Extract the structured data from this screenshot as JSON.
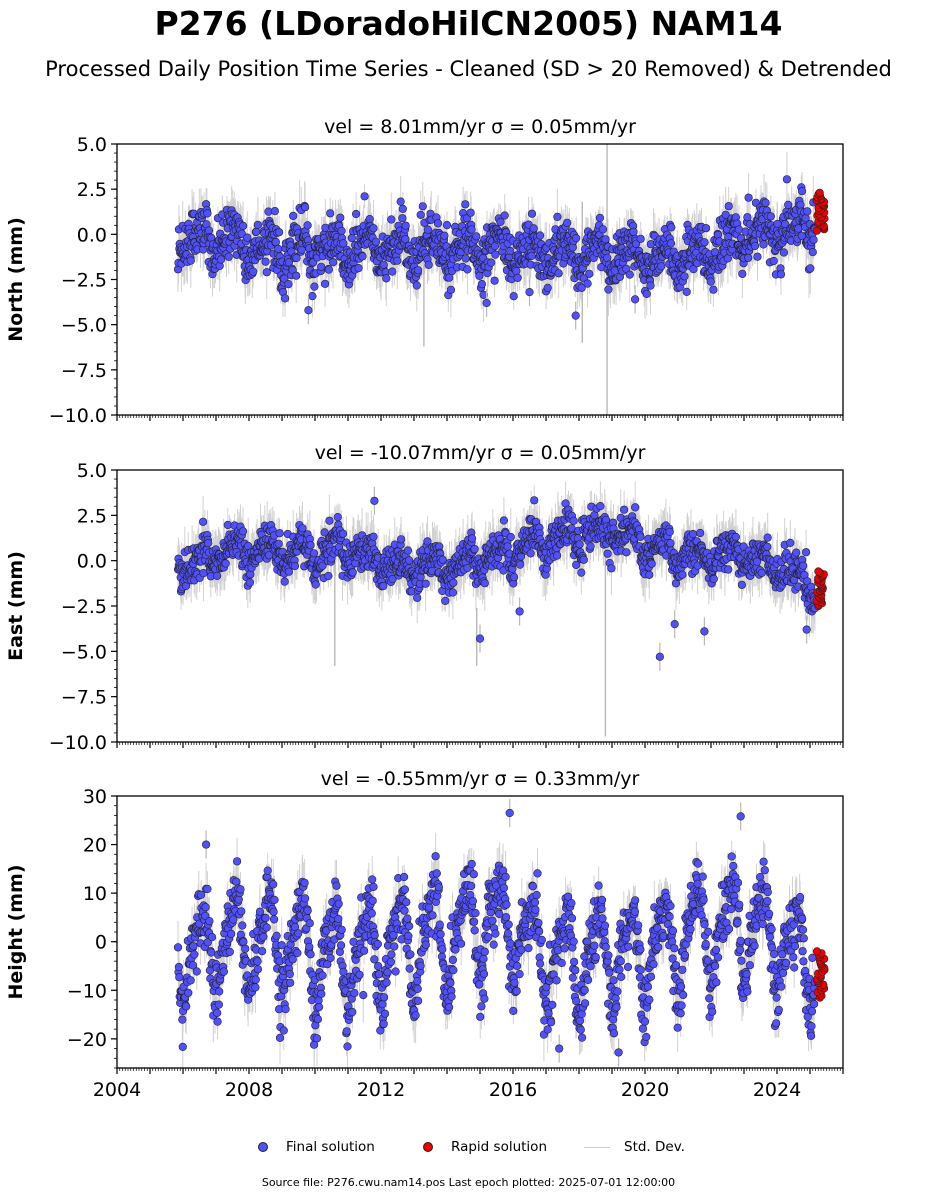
{
  "title": "P276 (LDoradoHilCN2005) NAM14",
  "subtitle": "Processed Daily Position Time Series - Cleaned (SD > 20 Removed) & Detrended",
  "footer": "Source file: P276.cwu.nam14.pos  Last epoch plotted: 2025-07-01 12:00:00",
  "legend": {
    "final": "Final solution",
    "rapid": "Rapid solution",
    "stddev": "Std. Dev.",
    "placement": "bottom-center"
  },
  "colors": {
    "final": "#5050ff",
    "rapid": "#ee0000",
    "stddev": "#b8b8b8",
    "marker_edge": "#222222"
  },
  "chart_data": [
    {
      "type": "scatter",
      "panel": "north",
      "title": "vel = 8.01mm/yr   σ = 0.05mm/yr",
      "ylabel": "North (mm)",
      "xlim": [
        2004.0,
        2026.0
      ],
      "ylim": [
        -10.0,
        5.0
      ],
      "yticks": [
        5.0,
        2.5,
        0.0,
        -2.5,
        -5.0,
        -7.5,
        -10.0
      ],
      "ytick_labels": [
        "5.0",
        "2.5",
        "0.0",
        "−2.5",
        "−5.0",
        "−7.5",
        "−10.0"
      ],
      "start": 2005.85,
      "end_final": 2025.15,
      "end_rapid": 2025.5,
      "anchors": [
        [
          2005.9,
          0.2
        ],
        [
          2007,
          -0.3
        ],
        [
          2008,
          -0.6
        ],
        [
          2009,
          -1.0
        ],
        [
          2010,
          -0.7
        ],
        [
          2012,
          -0.8
        ],
        [
          2014,
          -0.7
        ],
        [
          2016,
          -0.9
        ],
        [
          2018,
          -1.0
        ],
        [
          2019,
          -1.0
        ],
        [
          2020,
          -1.2
        ],
        [
          2021,
          -1.4
        ],
        [
          2022,
          -1.0
        ],
        [
          2023,
          -0.3
        ],
        [
          2024,
          0.1
        ],
        [
          2025.2,
          0.6
        ],
        [
          2025.5,
          1.2
        ]
      ],
      "seasonal_amplitude": 0.7,
      "scatter_sd": 0.7,
      "errorbar_halfwidth": 1.1,
      "outliers": [
        [
          2015.2,
          -3.8
        ],
        [
          2016.5,
          -3.2
        ],
        [
          2017.9,
          -4.5
        ],
        [
          2019.7,
          -3.6
        ],
        [
          2009.8,
          -4.2
        ]
      ],
      "grey_spikes": [
        [
          2018.85,
          -10.0,
          5.0
        ],
        [
          2018.1,
          -6.0,
          1.8
        ],
        [
          2013.3,
          -6.2,
          1.0
        ]
      ],
      "rapid_range": [
        0.2,
        2.3
      ]
    },
    {
      "type": "scatter",
      "panel": "east",
      "title": "vel = -10.07mm/yr   σ = 0.05mm/yr",
      "ylabel": "East (mm)",
      "xlim": [
        2004.0,
        2026.0
      ],
      "ylim": [
        -10.0,
        5.0
      ],
      "yticks": [
        5.0,
        2.5,
        0.0,
        -2.5,
        -5.0,
        -7.5,
        -10.0
      ],
      "ytick_labels": [
        "5.0",
        "2.5",
        "0.0",
        "−2.5",
        "−5.0",
        "−7.5",
        "−10.0"
      ],
      "start": 2005.85,
      "end_final": 2025.15,
      "end_rapid": 2025.5,
      "anchors": [
        [
          2005.9,
          -0.3
        ],
        [
          2007,
          0.3
        ],
        [
          2008,
          0.5
        ],
        [
          2010,
          0.4
        ],
        [
          2011,
          0.6
        ],
        [
          2012,
          0.0
        ],
        [
          2013,
          -0.5
        ],
        [
          2014,
          -0.4
        ],
        [
          2015,
          0.0
        ],
        [
          2016,
          0.6
        ],
        [
          2017,
          1.2
        ],
        [
          2018,
          1.3
        ],
        [
          2019,
          1.6
        ],
        [
          2020,
          1.0
        ],
        [
          2021,
          0.3
        ],
        [
          2022,
          0.2
        ],
        [
          2023,
          0.3
        ],
        [
          2024,
          -0.2
        ],
        [
          2025.2,
          -1.5
        ],
        [
          2025.5,
          -1.9
        ]
      ],
      "seasonal_amplitude": 0.6,
      "scatter_sd": 0.55,
      "errorbar_halfwidth": 1.1,
      "outliers": [
        [
          2011.8,
          3.3
        ],
        [
          2015.0,
          -4.3
        ],
        [
          2020.45,
          -5.3
        ],
        [
          2020.9,
          -3.5
        ],
        [
          2021.8,
          -3.9
        ],
        [
          2024.9,
          -3.8
        ],
        [
          2016.2,
          -2.8
        ]
      ],
      "grey_spikes": [
        [
          2018.8,
          -9.7,
          3.0
        ],
        [
          2010.6,
          -5.8,
          1.0
        ],
        [
          2014.9,
          -5.8,
          -2.6
        ]
      ],
      "rapid_range": [
        -2.5,
        -0.6
      ]
    },
    {
      "type": "scatter",
      "panel": "height",
      "title": "vel = -0.55mm/yr   σ = 0.33mm/yr",
      "ylabel": "Height (mm)",
      "xlim": [
        2004.0,
        2026.0
      ],
      "ylim": [
        -26.0,
        30.0
      ],
      "yticks": [
        30,
        20,
        10,
        0,
        -10,
        -20
      ],
      "ytick_labels": [
        "30",
        "20",
        "10",
        "0",
        "−10",
        "−20"
      ],
      "xticks": [
        2004,
        2008,
        2012,
        2016,
        2020,
        2024
      ],
      "xtick_labels": [
        "2004",
        "2008",
        "2012",
        "2016",
        "2020",
        "2024"
      ],
      "start": 2005.85,
      "end_final": 2025.15,
      "end_rapid": 2025.5,
      "anchors": [
        [
          2005.9,
          -2
        ],
        [
          2008,
          0
        ],
        [
          2010,
          -2
        ],
        [
          2011,
          -3
        ],
        [
          2012,
          -2
        ],
        [
          2014,
          1
        ],
        [
          2015,
          4
        ],
        [
          2016,
          3
        ],
        [
          2017,
          -2
        ],
        [
          2018,
          -4
        ],
        [
          2019,
          -3
        ],
        [
          2020,
          -2
        ],
        [
          2021,
          0
        ],
        [
          2022,
          3
        ],
        [
          2023,
          4
        ],
        [
          2024,
          0
        ],
        [
          2025.2,
          -4
        ],
        [
          2025.5,
          -7
        ]
      ],
      "seasonal_amplitude": 9.0,
      "scatter_sd": 3.5,
      "errorbar_halfwidth": 4.0,
      "outliers": [
        [
          2006.7,
          20.0
        ],
        [
          2017.4,
          -22.0
        ],
        [
          2019.2,
          -22.8
        ],
        [
          2022.9,
          25.8
        ],
        [
          2015.9,
          26.5
        ]
      ],
      "grey_spikes": [],
      "rapid_range": [
        -11.5,
        -2.0
      ]
    }
  ]
}
